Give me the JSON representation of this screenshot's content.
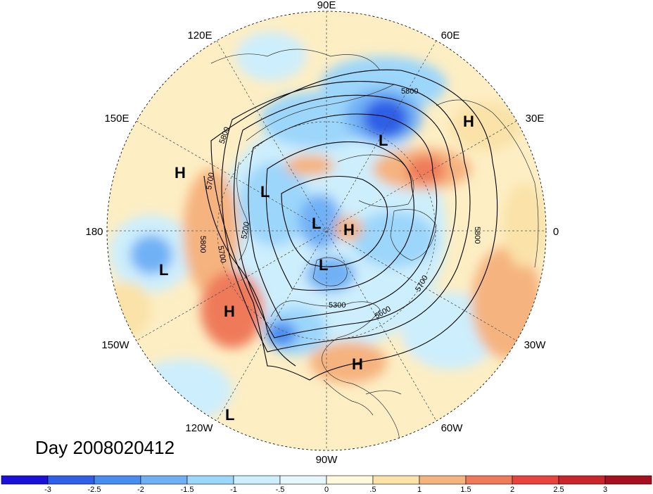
{
  "map": {
    "day_label": "Day 2008020412",
    "longitude_labels": [
      {
        "text": "90E",
        "angle": 90
      },
      {
        "text": "60E",
        "angle": 60
      },
      {
        "text": "30E",
        "angle": 30
      },
      {
        "text": "0",
        "angle": 0
      },
      {
        "text": "30W",
        "angle": -30
      },
      {
        "text": "60W",
        "angle": -60
      },
      {
        "text": "90W",
        "angle": -90
      },
      {
        "text": "120W",
        "angle": -120
      },
      {
        "text": "150W",
        "angle": -150
      },
      {
        "text": "180",
        "angle": 180
      },
      {
        "text": "150E",
        "angle": 150
      },
      {
        "text": "120E",
        "angle": 120
      }
    ],
    "pressure_systems": [
      {
        "text": "H",
        "kind": "high",
        "name": "high-east-europe"
      },
      {
        "text": "L",
        "kind": "low",
        "name": "low-siberia"
      },
      {
        "text": "H",
        "kind": "high",
        "name": "high-north-pacific-west"
      },
      {
        "text": "L",
        "kind": "low",
        "name": "low-east-siberia"
      },
      {
        "text": "L",
        "kind": "low",
        "name": "low-arctic"
      },
      {
        "text": "H",
        "kind": "high",
        "name": "high-greenland"
      },
      {
        "text": "L",
        "kind": "low",
        "name": "low-hudson-bay"
      },
      {
        "text": "L",
        "kind": "low",
        "name": "low-central-pacific"
      },
      {
        "text": "H",
        "kind": "high",
        "name": "high-gulf-of-alaska"
      },
      {
        "text": "H",
        "kind": "high",
        "name": "high-southeast-us"
      },
      {
        "text": "L",
        "kind": "low",
        "name": "low-eastern-pacific"
      }
    ],
    "contour_labels": [
      "5800",
      "5800",
      "5700",
      "5800",
      "5700",
      "5200",
      "5300",
      "5600",
      "5700",
      "5800"
    ]
  },
  "colorbar": {
    "colors": [
      "#1a10d8",
      "#2f5fe6",
      "#4a8df0",
      "#6fb0f5",
      "#9cd6fa",
      "#cdeefc",
      "#e6f7fc",
      "#fff8dc",
      "#fae2a8",
      "#f5b37f",
      "#ef7a5a",
      "#e8433e",
      "#c8262c",
      "#a5101e"
    ],
    "ticks": [
      "-3",
      "-2.5",
      "-2",
      "-1.5",
      "-1",
      "-.5",
      "0",
      ".5",
      "1",
      "1.5",
      "2",
      "2.5",
      "3"
    ]
  }
}
